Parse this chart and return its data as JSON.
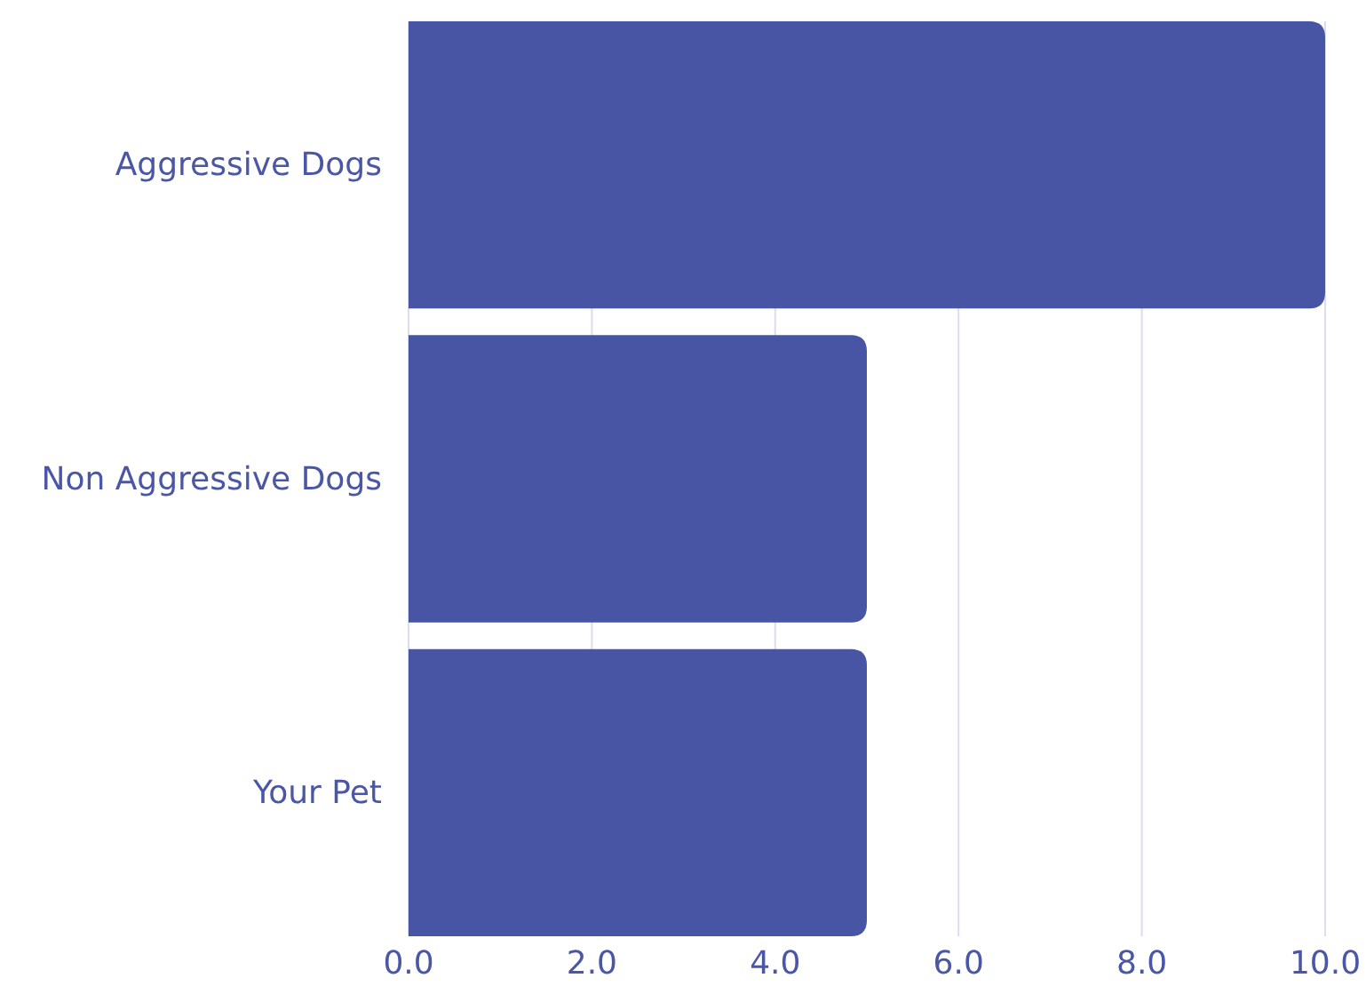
{
  "chart_data": {
    "type": "bar",
    "orientation": "horizontal",
    "categories": [
      "Aggressive Dogs",
      "Non Aggressive Dogs",
      "Your Pet"
    ],
    "values": [
      10,
      5,
      5
    ],
    "color": "#4755a4",
    "xlim": [
      0,
      10
    ],
    "xticks": [
      {
        "value": 0,
        "label": "0.0"
      },
      {
        "value": 2,
        "label": "2.0"
      },
      {
        "value": 4,
        "label": "4.0"
      },
      {
        "value": 6,
        "label": "6.0"
      },
      {
        "value": 8,
        "label": "8.0"
      },
      {
        "value": 10,
        "label": "10.0"
      }
    ],
    "grid": "x"
  }
}
